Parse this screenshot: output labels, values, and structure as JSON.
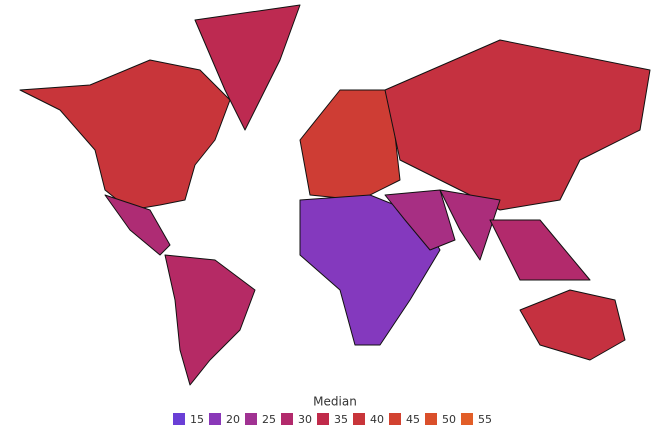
{
  "chart_data": {
    "type": "choropleth",
    "values": [
      40,
      34,
      29,
      31,
      43,
      19,
      27,
      38,
      28,
      30,
      38
    ],
    "colorscale": {
      "title": "Median",
      "ticks": [
        15,
        20,
        25,
        30,
        35,
        40,
        45,
        50,
        55
      ],
      "colors": [
        "#6a3fd6",
        "#8a38b8",
        "#a03292",
        "#b22a6c",
        "#c02a4a",
        "#c8353a",
        "#d24230",
        "#da4f2b",
        "#e25e28"
      ]
    }
  }
}
